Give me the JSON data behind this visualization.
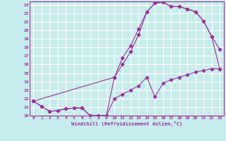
{
  "xlabel": "Windchill (Refroidissement éolien,°C)",
  "xlim": [
    -0.5,
    23.5
  ],
  "ylim": [
    10,
    23.4
  ],
  "bg_color": "#c8ecec",
  "line_color": "#993399",
  "grid_color": "#ffffff",
  "xticks": [
    0,
    1,
    2,
    3,
    4,
    5,
    6,
    7,
    8,
    9,
    10,
    11,
    12,
    13,
    14,
    15,
    16,
    17,
    18,
    19,
    20,
    21,
    22,
    23
  ],
  "yticks": [
    10,
    11,
    12,
    13,
    14,
    15,
    16,
    17,
    18,
    19,
    20,
    21,
    22,
    23
  ],
  "line1_x": [
    0,
    1,
    2,
    3,
    4,
    5,
    6,
    7,
    8,
    9,
    10,
    11,
    12,
    13,
    14,
    15,
    16,
    17,
    18,
    19,
    20,
    21,
    22,
    23
  ],
  "line1_y": [
    11.7,
    11.1,
    10.5,
    10.6,
    10.8,
    10.9,
    10.9,
    10.0,
    10.0,
    10.0,
    12.0,
    12.5,
    13.0,
    13.5,
    14.5,
    12.2,
    13.8,
    14.2,
    14.5,
    14.8,
    15.1,
    15.3,
    15.5,
    15.5
  ],
  "line2_x": [
    0,
    1,
    2,
    3,
    4,
    5,
    6,
    7,
    8,
    9,
    10,
    11,
    12,
    13,
    14,
    15,
    16,
    17,
    18,
    19,
    20,
    21,
    22,
    23
  ],
  "line2_y": [
    11.7,
    11.1,
    10.5,
    10.6,
    10.8,
    10.9,
    10.9,
    10.0,
    10.0,
    10.0,
    14.5,
    16.0,
    17.5,
    19.5,
    22.2,
    23.2,
    23.3,
    22.8,
    22.8,
    22.5,
    22.2,
    21.1,
    19.3,
    17.8
  ],
  "line3_x": [
    0,
    10,
    11,
    12,
    13,
    14,
    15,
    16,
    17,
    18,
    19,
    20,
    21,
    22,
    23
  ],
  "line3_y": [
    11.7,
    14.5,
    16.8,
    18.2,
    20.2,
    22.2,
    23.2,
    23.3,
    22.8,
    22.8,
    22.5,
    22.2,
    21.1,
    19.3,
    15.5
  ]
}
